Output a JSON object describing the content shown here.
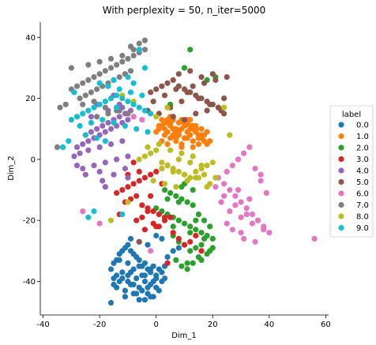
{
  "chart_data": {
    "type": "scatter",
    "title": "With perplexity = 50, n_iter=5000",
    "xlabel": "Dim_1",
    "ylabel": "Dim_2",
    "xlim": [
      -41,
      61
    ],
    "ylim": [
      -51,
      45
    ],
    "xticks": [
      -40,
      -20,
      0,
      20,
      40,
      60
    ],
    "yticks": [
      -40,
      -20,
      0,
      20,
      40
    ],
    "grid": false,
    "legend_placement": "center right, outside plot",
    "legend_title": "label",
    "series": [
      {
        "name": "0.0",
        "color": "#1f77b4",
        "x": [
          -16,
          -15,
          -14,
          -13,
          -12,
          -11,
          -10,
          -9,
          -8,
          -7,
          -6,
          -5,
          -4,
          -3,
          -2,
          -1,
          0,
          1,
          2,
          3,
          4,
          -14,
          -12,
          -10,
          -8,
          -6,
          -4,
          -2,
          0,
          2,
          -15,
          -11,
          -7,
          -3,
          1,
          -9,
          -5,
          -1,
          3,
          -13,
          -8,
          -4,
          0,
          -10,
          -6,
          -2,
          -12,
          -7,
          -3,
          -15,
          -9,
          -5,
          -1,
          -11,
          -6,
          -13,
          -8,
          -4,
          -10,
          -14,
          -16,
          -9,
          -6,
          -3,
          0,
          2,
          4,
          6,
          8,
          -2
        ],
        "y": [
          -36,
          -34,
          -33,
          -31,
          -30,
          -29,
          -28,
          -30,
          -31,
          -32,
          -33,
          -35,
          -34,
          -36,
          -37,
          -35,
          -38,
          -36,
          -37,
          -35,
          -34,
          -38,
          -39,
          -40,
          -41,
          -42,
          -40,
          -41,
          -39,
          -40,
          -41,
          -43,
          -44,
          -42,
          -43,
          -37,
          -38,
          -40,
          -39,
          -33,
          -36,
          -38,
          -42,
          -34,
          -35,
          -36,
          -37,
          -39,
          -44,
          -39,
          -41,
          -43,
          -45,
          -45,
          -46,
          -40,
          -44,
          -46,
          -38,
          -42,
          -47,
          -26,
          -27,
          -28,
          -25,
          -26,
          -32,
          -30,
          -29,
          -45
        ]
      },
      {
        "name": "1.0",
        "color": "#ff7f0e",
        "x": [
          0,
          1,
          2,
          3,
          4,
          5,
          6,
          7,
          8,
          9,
          10,
          11,
          12,
          13,
          14,
          15,
          16,
          17,
          18,
          3,
          5,
          7,
          9,
          11,
          13,
          15,
          4,
          6,
          8,
          10,
          12,
          14,
          16,
          2,
          4,
          6,
          8,
          10,
          12,
          14,
          1,
          3,
          5,
          7,
          9,
          11,
          13,
          15,
          17,
          19,
          2,
          6,
          10,
          14,
          18,
          4,
          8,
          12,
          16,
          5,
          9,
          13,
          11,
          7,
          3
        ],
        "y": [
          9,
          10,
          11,
          12,
          13,
          11,
          10,
          9,
          8,
          10,
          11,
          9,
          8,
          10,
          9,
          8,
          7,
          6,
          5,
          8,
          7,
          6,
          5,
          7,
          6,
          5,
          12,
          13,
          12,
          11,
          10,
          9,
          8,
          6,
          5,
          8,
          9,
          7,
          11,
          10,
          11,
          10,
          12,
          10,
          13,
          12,
          11,
          7,
          8,
          6,
          13,
          14,
          12,
          11,
          9,
          9,
          8,
          13,
          10,
          14,
          4,
          4,
          13,
          7,
          12
        ]
      },
      {
        "name": "2.0",
        "color": "#2ca02c",
        "x": [
          0,
          2,
          4,
          6,
          8,
          10,
          12,
          14,
          16,
          18,
          20,
          3,
          5,
          7,
          9,
          11,
          13,
          15,
          17,
          19,
          6,
          8,
          10,
          12,
          14,
          16,
          18,
          4,
          9,
          13,
          17,
          7,
          11,
          15,
          19,
          10,
          14,
          12,
          8,
          6,
          16,
          20,
          9,
          11,
          13,
          10,
          12,
          21,
          18,
          5
        ],
        "y": [
          -16,
          -17,
          -18,
          -19,
          -20,
          -21,
          -22,
          -23,
          -24,
          -25,
          -26,
          -10,
          -11,
          -12,
          -13,
          -14,
          -15,
          -18,
          -20,
          -22,
          -25,
          -27,
          -28,
          -30,
          -29,
          -28,
          -31,
          -13,
          -9,
          -10,
          -26,
          -33,
          -34,
          -32,
          -30,
          -8,
          -20,
          -24,
          -14,
          -22,
          -33,
          -29,
          -35,
          -36,
          -34,
          30,
          36,
          27,
          26,
          18
        ]
      },
      {
        "name": "3.0",
        "color": "#d62728",
        "x": [
          -14,
          -12,
          -10,
          -8,
          -6,
          -4,
          -2,
          0,
          2,
          4,
          -11,
          -9,
          -7,
          -5,
          -3,
          -1,
          1,
          3,
          -13,
          -7,
          -5,
          -3,
          -1,
          1,
          3,
          5,
          -10,
          -6,
          -2,
          2,
          6,
          8,
          10,
          12,
          14,
          16,
          4,
          -8,
          -4,
          0
        ],
        "y": [
          -11,
          -10,
          -9,
          -8,
          -7,
          -6,
          -5,
          -4,
          -3,
          -2,
          -14,
          -13,
          -12,
          -15,
          -16,
          -17,
          -18,
          -19,
          -18,
          -20,
          -19,
          -17,
          -21,
          -22,
          -20,
          -19,
          -5,
          -4,
          -12,
          -8,
          -24,
          -26,
          -28,
          -27,
          -25,
          -30,
          -34,
          -1,
          -23,
          -22
        ]
      },
      {
        "name": "4.0",
        "color": "#9467bd",
        "x": [
          -28,
          -26,
          -24,
          -22,
          -20,
          -18,
          -16,
          -14,
          -12,
          -10,
          -8,
          -25,
          -23,
          -21,
          -19,
          -17,
          -15,
          -13,
          -11,
          -9,
          -27,
          -24,
          -20,
          -16,
          -12,
          -22,
          -18,
          -14,
          -10,
          -26,
          -20,
          -15,
          -10,
          -23,
          -17,
          -12,
          -29,
          -21,
          -13,
          -19,
          -25,
          -18,
          -11,
          -28,
          -15
        ],
        "y": [
          4,
          5,
          6,
          7,
          8,
          9,
          10,
          11,
          12,
          13,
          14,
          8,
          9,
          10,
          11,
          12,
          13,
          14,
          15,
          16,
          2,
          3,
          4,
          5,
          6,
          -2,
          -1,
          0,
          1,
          -3,
          -4,
          -5,
          -6,
          14,
          16,
          17,
          1,
          18,
          18,
          -7,
          -5,
          -9,
          -3,
          -2,
          21
        ]
      },
      {
        "name": "5.0",
        "color": "#8c564b",
        "x": [
          -2,
          0,
          2,
          4,
          6,
          8,
          10,
          12,
          14,
          16,
          18,
          20,
          22,
          24,
          -1,
          3,
          7,
          11,
          15,
          19,
          23,
          1,
          5,
          9,
          13,
          17,
          21,
          25,
          6,
          10,
          14,
          18,
          22,
          8,
          12,
          16,
          20,
          -3,
          24,
          -6
        ],
        "y": [
          22,
          23,
          24,
          25,
          26,
          24,
          23,
          22,
          21,
          20,
          19,
          18,
          17,
          20,
          19,
          21,
          23,
          22,
          20,
          18,
          16,
          15,
          17,
          19,
          24,
          25,
          26,
          27,
          14,
          13,
          15,
          16,
          17,
          28,
          29,
          27,
          28,
          16,
          15,
          -27
        ]
      },
      {
        "name": "6.0",
        "color": "#e377c2",
        "x": [
          22,
          24,
          26,
          28,
          30,
          32,
          34,
          36,
          38,
          40,
          25,
          27,
          29,
          31,
          33,
          35,
          37,
          39,
          23,
          26,
          30,
          34,
          38,
          21,
          24,
          28,
          32,
          36,
          25,
          29,
          33,
          37,
          27,
          31,
          35,
          30,
          -8,
          -5,
          -2,
          -20,
          -26,
          56
        ],
        "y": [
          -6,
          -8,
          -10,
          -12,
          -14,
          -16,
          -18,
          -20,
          -22,
          -24,
          -4,
          -2,
          0,
          2,
          4,
          -3,
          -7,
          -11,
          -14,
          -17,
          -19,
          -21,
          -23,
          -9,
          -12,
          -15,
          -18,
          -20,
          -21,
          -10,
          -13,
          -5,
          -23,
          -26,
          -27,
          -24,
          14,
          13,
          -30,
          -21,
          -17,
          -26
        ]
      },
      {
        "name": "7.0",
        "color": "#7f7f7f",
        "x": [
          -30,
          -28,
          -26,
          -24,
          -22,
          -20,
          -18,
          -16,
          -14,
          -12,
          -10,
          -8,
          -6,
          -4,
          -27,
          -25,
          -23,
          -21,
          -19,
          -17,
          -15,
          -13,
          -11,
          -9,
          -26,
          -22,
          -18,
          -14,
          -10,
          -30,
          -24,
          -20,
          -16,
          -12,
          -8,
          -28,
          -32,
          -34,
          -35,
          -21,
          -17,
          -13,
          -9,
          -6,
          -4
        ],
        "y": [
          23,
          24,
          25,
          26,
          27,
          28,
          29,
          30,
          31,
          32,
          33,
          34,
          35,
          36,
          20,
          21,
          22,
          23,
          24,
          25,
          26,
          27,
          28,
          29,
          18,
          19,
          17,
          16,
          15,
          30,
          31,
          32,
          33,
          34,
          36,
          14,
          18,
          17,
          4,
          14,
          15,
          16,
          37,
          38,
          39
        ]
      },
      {
        "name": "8.0",
        "color": "#bcbd22",
        "x": [
          -6,
          -4,
          -2,
          0,
          2,
          4,
          6,
          8,
          10,
          12,
          14,
          16,
          18,
          20,
          -3,
          1,
          5,
          9,
          13,
          17,
          21,
          -1,
          3,
          7,
          11,
          15,
          19,
          2,
          6,
          10,
          14,
          18,
          8,
          12,
          16,
          4,
          0,
          -8,
          -12,
          24,
          -16,
          26,
          -10
        ],
        "y": [
          0,
          1,
          2,
          3,
          -1,
          -2,
          -3,
          -4,
          -5,
          -6,
          -4,
          -3,
          -2,
          -1,
          4,
          5,
          3,
          2,
          1,
          -5,
          -6,
          -7,
          -8,
          -9,
          -7,
          -6,
          -8,
          -3,
          -4,
          -5,
          -6,
          -9,
          0,
          -1,
          -2,
          17,
          14,
          19,
          21,
          17,
          -20,
          8,
          -14
        ]
      },
      {
        "name": "9.0",
        "color": "#17becf",
        "x": [
          -30,
          -28,
          -26,
          -24,
          -22,
          -20,
          -18,
          -16,
          -14,
          -12,
          -10,
          -8,
          -6,
          -4,
          -2,
          -27,
          -23,
          -19,
          -15,
          -11,
          -7,
          -3,
          -25,
          -21,
          -17,
          -13,
          -9,
          -5,
          -29,
          -20,
          -15,
          -10,
          -18,
          -14,
          -6,
          -31,
          -22,
          -33,
          -24,
          -12,
          -8,
          -4
        ],
        "y": [
          13,
          14,
          15,
          16,
          17,
          18,
          19,
          20,
          21,
          20,
          19,
          18,
          17,
          16,
          15,
          11,
          12,
          13,
          12,
          11,
          10,
          9,
          8,
          7,
          24,
          23,
          22,
          21,
          22,
          25,
          26,
          27,
          6,
          17,
          36,
          6,
          -17,
          4,
          -19,
          -18,
          25,
          30
        ]
      }
    ]
  }
}
